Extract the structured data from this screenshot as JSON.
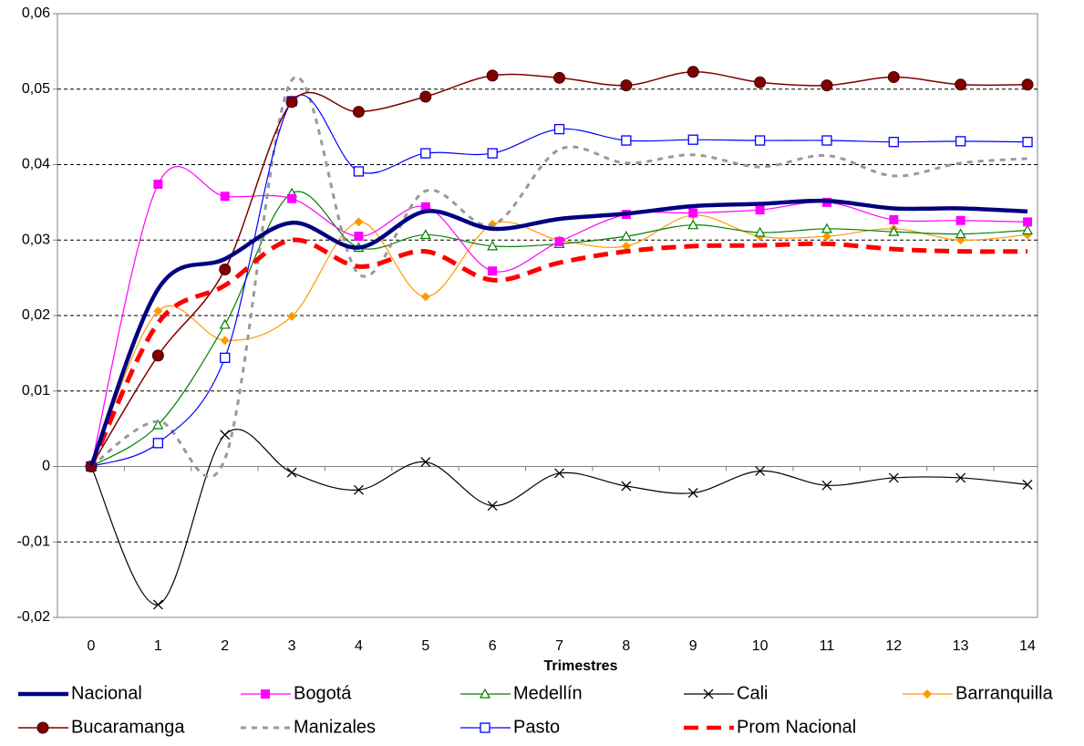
{
  "chart_data": {
    "type": "line",
    "x_label": "Trimestres",
    "categories": [
      "0",
      "1",
      "2",
      "3",
      "4",
      "5",
      "6",
      "7",
      "8",
      "9",
      "10",
      "11",
      "12",
      "13",
      "14"
    ],
    "ylim": [
      -0.02,
      0.06
    ],
    "yticks": [
      {
        "value": -0.02,
        "label": "-0,02"
      },
      {
        "value": -0.01,
        "label": "-0,01"
      },
      0,
      {
        "value": 0.01,
        "label": "0,01"
      },
      {
        "value": 0.02,
        "label": "0,02"
      },
      {
        "value": 0.03,
        "label": "0,03"
      },
      {
        "value": 0.04,
        "label": "0,04"
      },
      {
        "value": 0.05,
        "label": "0,05"
      },
      {
        "value": 0.06,
        "label": "0,06"
      }
    ],
    "grid": true,
    "series": [
      {
        "name": "Nacional",
        "color": "#000080",
        "values": [
          0,
          0.0235,
          0.0275,
          0.0323,
          0.029,
          0.0338,
          0.0315,
          0.0328,
          0.0335,
          0.0345,
          0.0348,
          0.0352,
          0.0342,
          0.0342,
          0.0338
        ]
      },
      {
        "name": "Bogotá",
        "color": "#ff00ff",
        "values": [
          0,
          0.0374,
          0.0358,
          0.0355,
          0.0305,
          0.0344,
          0.0259,
          0.0298,
          0.0334,
          0.0336,
          0.034,
          0.035,
          0.0327,
          0.0326,
          0.0324
        ]
      },
      {
        "name": "Medellín",
        "color": "#008000",
        "values": [
          0,
          0.0055,
          0.0188,
          0.0362,
          0.029,
          0.0307,
          0.0292,
          0.0295,
          0.0305,
          0.032,
          0.031,
          0.0315,
          0.0311,
          0.0308,
          0.0313
        ]
      },
      {
        "name": "Cali",
        "color": "#000000",
        "values": [
          0,
          -0.0183,
          0.0042,
          -0.0008,
          -0.0031,
          0.0006,
          -0.0052,
          -0.0009,
          -0.0026,
          -0.0035,
          -0.0006,
          -0.0025,
          -0.0015,
          -0.0015,
          -0.0024
        ]
      },
      {
        "name": "Barranquilla",
        "color": "#ff9900",
        "values": [
          0,
          0.0206,
          0.0167,
          0.0199,
          0.0324,
          0.0225,
          0.0321,
          0.03,
          0.0292,
          0.0333,
          0.0305,
          0.0305,
          0.0315,
          0.03,
          0.0307
        ]
      },
      {
        "name": "Bucaramanga",
        "color": "#800000",
        "values": [
          0,
          0.0147,
          0.0261,
          0.0483,
          0.047,
          0.049,
          0.0518,
          0.0515,
          0.0505,
          0.0523,
          0.0509,
          0.0505,
          0.0516,
          0.0506,
          0.0506
        ]
      },
      {
        "name": "Manizales",
        "color": "#999999",
        "values": [
          0,
          0.006,
          0.001,
          0.0512,
          0.0255,
          0.0365,
          0.032,
          0.042,
          0.0402,
          0.0413,
          0.0397,
          0.0412,
          0.0385,
          0.0402,
          0.0408
        ]
      },
      {
        "name": "Pasto",
        "color": "#0000ff",
        "values": [
          0,
          0.0031,
          0.0144,
          0.0484,
          0.0391,
          0.0415,
          0.0415,
          0.0447,
          0.0432,
          0.0433,
          0.0432,
          0.0432,
          0.043,
          0.0431,
          0.043
        ]
      },
      {
        "name": "Prom Nacional",
        "color": "#ff0000",
        "values": [
          0,
          0.019,
          0.024,
          0.03,
          0.0265,
          0.0285,
          0.0247,
          0.027,
          0.0285,
          0.0292,
          0.0293,
          0.0295,
          0.0288,
          0.0285,
          0.0285
        ]
      }
    ]
  }
}
